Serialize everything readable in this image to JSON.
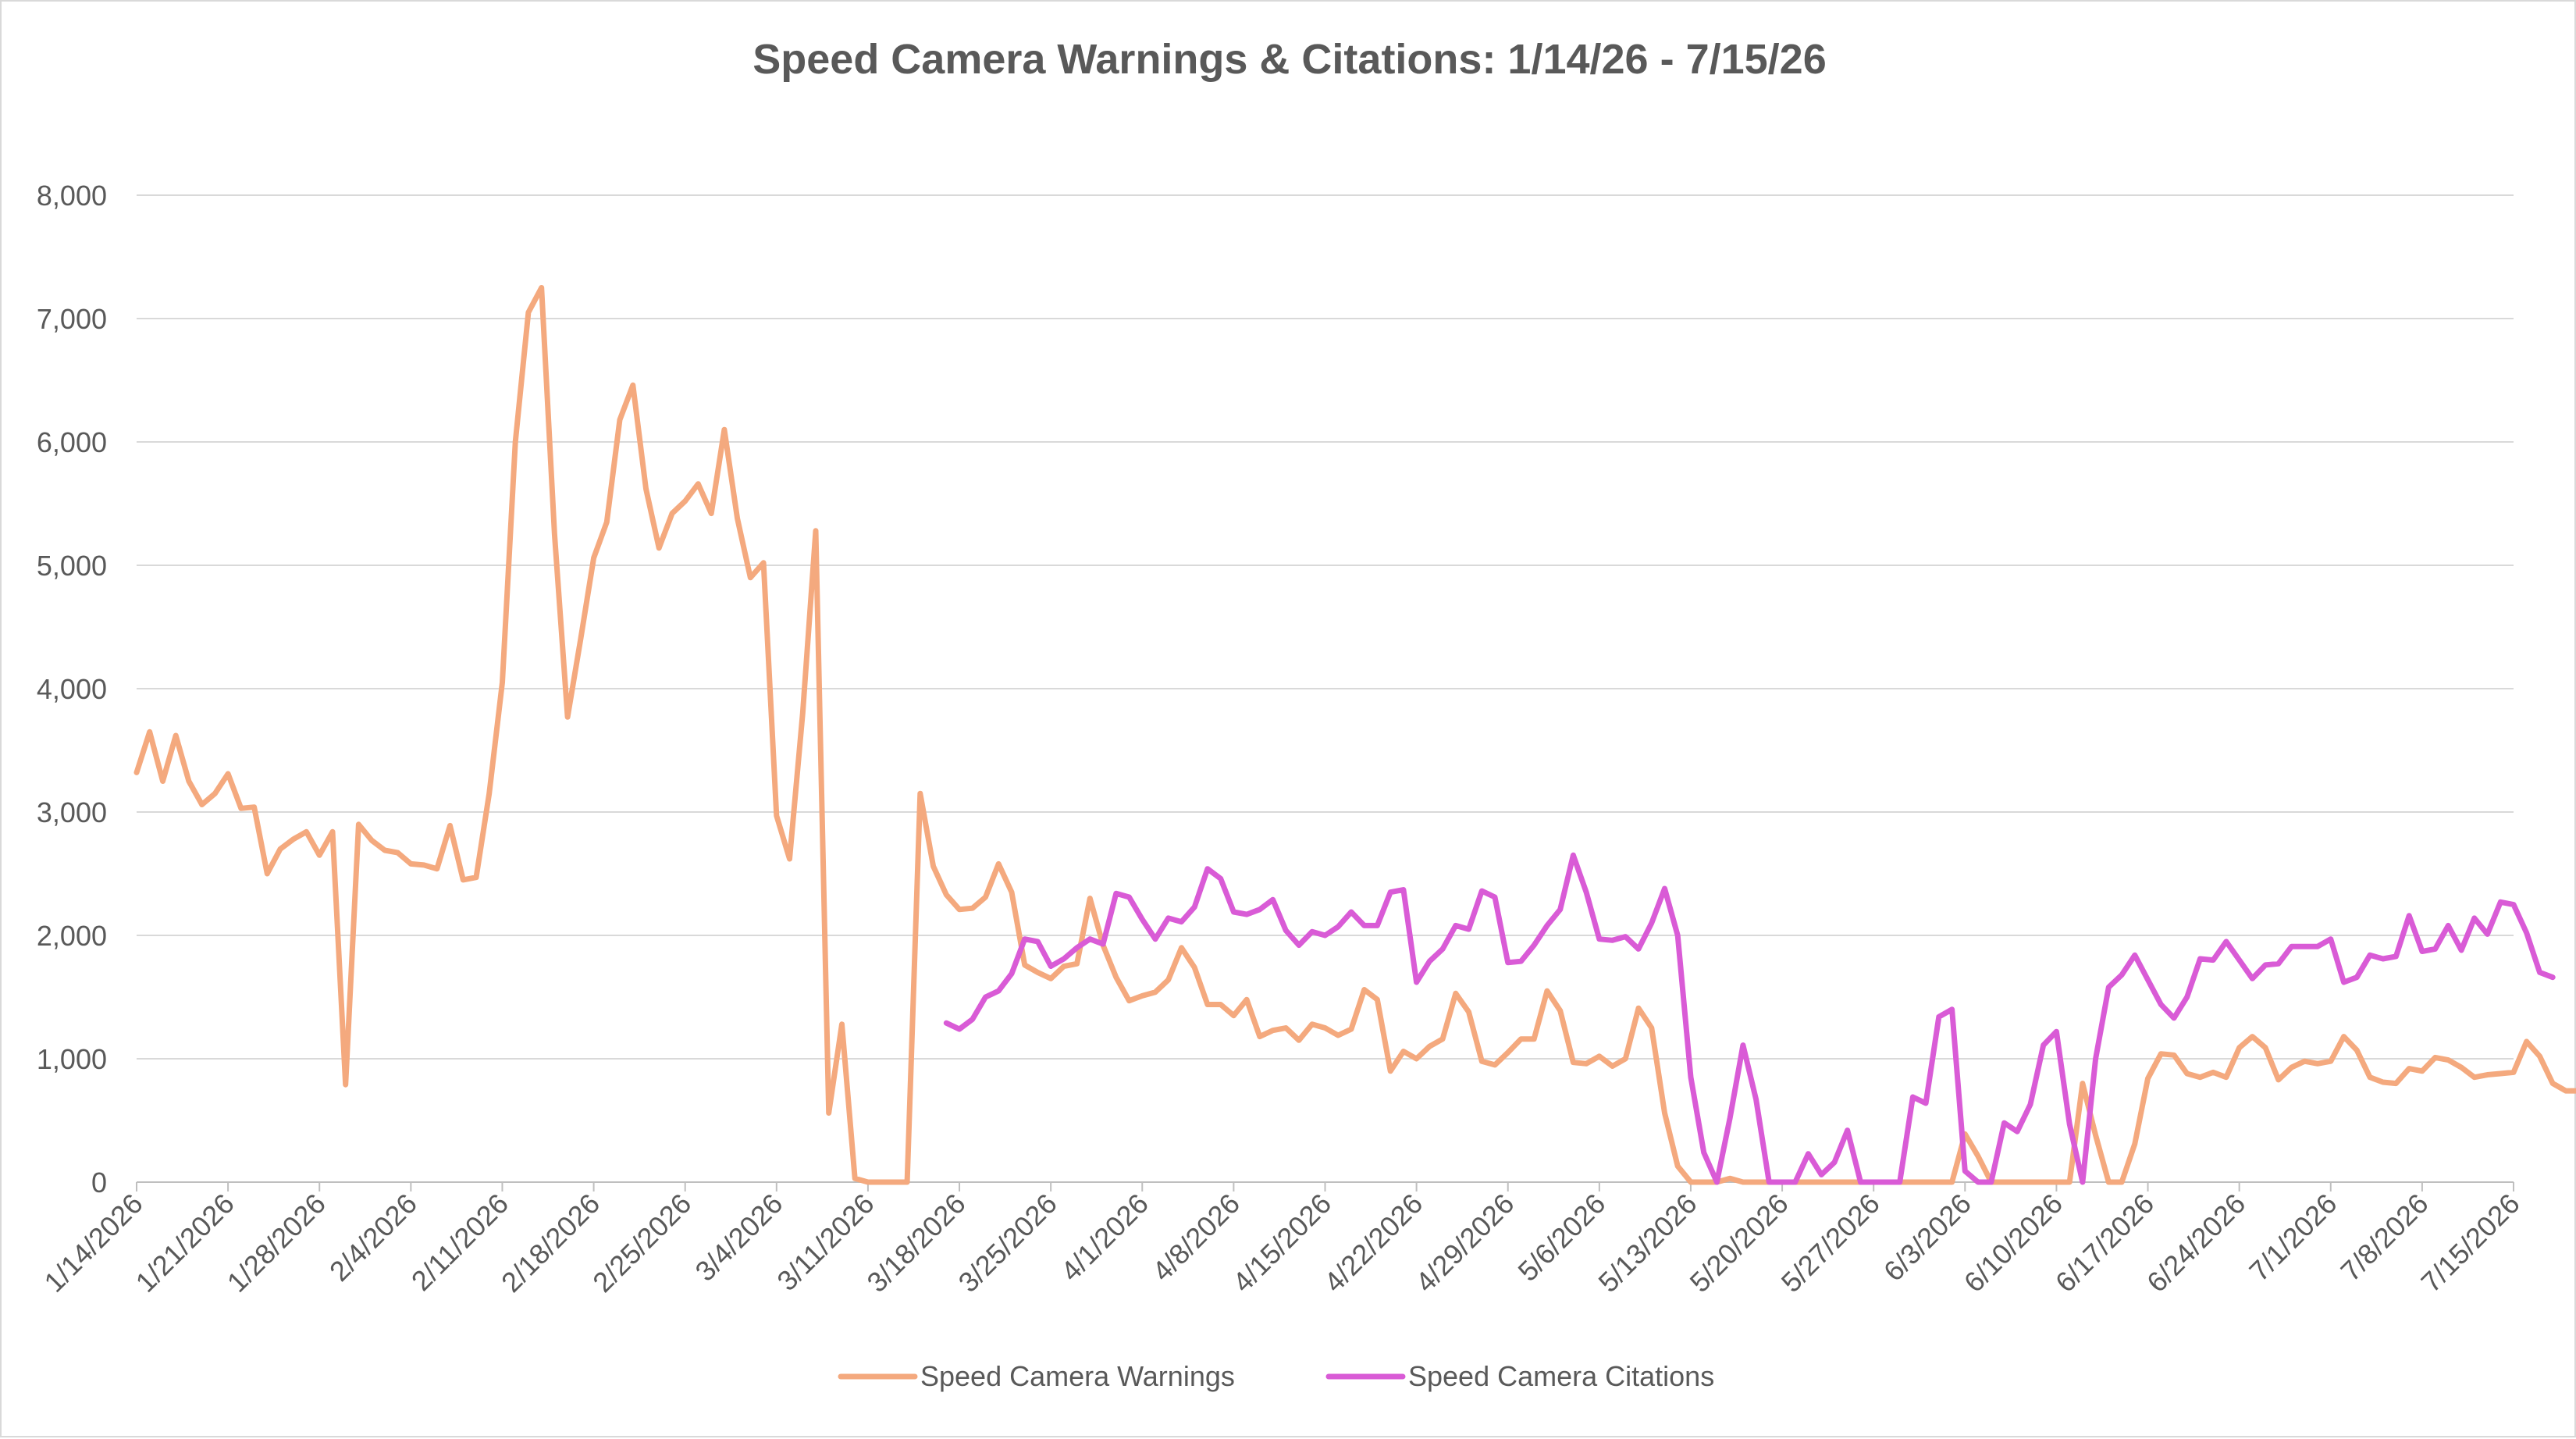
{
  "chart_data": {
    "type": "line",
    "title": "Speed Camera Warnings & Citations: 1/14/26 - 7/15/26",
    "xlabel": "",
    "ylabel": "",
    "ylim": [
      0,
      8000
    ],
    "yticks": [
      0,
      1000,
      2000,
      3000,
      4000,
      5000,
      6000,
      7000,
      8000
    ],
    "ytick_labels": [
      "0",
      "1,000",
      "2,000",
      "3,000",
      "4,000",
      "5,000",
      "6,000",
      "7,000",
      "8,000"
    ],
    "x_start": "1/14/2026",
    "x_end": "7/15/2026",
    "x_tick_labels": [
      "1/14/2026",
      "1/21/2026",
      "1/28/2026",
      "2/4/2026",
      "2/11/2026",
      "2/18/2026",
      "2/25/2026",
      "3/4/2026",
      "3/11/2026",
      "3/18/2026",
      "3/25/2026",
      "4/1/2026",
      "4/8/2026",
      "4/15/2026",
      "4/22/2026",
      "4/29/2026",
      "5/6/2026",
      "5/13/2026",
      "5/20/2026",
      "5/27/2026",
      "6/3/2026",
      "6/10/2026",
      "6/17/2026",
      "6/24/2026",
      "7/1/2026",
      "7/8/2026",
      "7/15/2026"
    ],
    "grid": true,
    "legend": "bottom",
    "colors": {
      "warnings": "#f4a97e",
      "citations": "#d95bd6",
      "grid": "#d9d9d9",
      "axis": "#bfbfbf",
      "text": "#595959"
    },
    "series": [
      {
        "name": "Speed Camera Warnings",
        "start": "1/14/2026",
        "values": [
          3320,
          3650,
          3250,
          3620,
          3250,
          3060,
          3150,
          3310,
          3030,
          3040,
          2500,
          2700,
          2780,
          2840,
          2650,
          2840,
          790,
          2900,
          2770,
          2690,
          2670,
          2580,
          2570,
          2540,
          2890,
          2450,
          2470,
          3150,
          4050,
          6000,
          7050,
          7250,
          5250,
          3770,
          4400,
          5060,
          5350,
          6180,
          6460,
          5620,
          5140,
          5420,
          5520,
          5660,
          5420,
          6100,
          5380,
          4900,
          5020,
          2970,
          2620,
          3800,
          5280,
          560,
          1280,
          30,
          0,
          0,
          0,
          0,
          3150,
          2560,
          2330,
          2210,
          2220,
          2310,
          2580,
          2350,
          1760,
          1700,
          1650,
          1750,
          1770,
          2300,
          1920,
          1660,
          1470,
          1510,
          1540,
          1640,
          1900,
          1740,
          1440,
          1440,
          1350,
          1480,
          1180,
          1230,
          1250,
          1150,
          1280,
          1250,
          1190,
          1240,
          1560,
          1480,
          900,
          1060,
          1000,
          1100,
          1160,
          1530,
          1380,
          980,
          950,
          1050,
          1160,
          1160,
          1550,
          1390,
          970,
          960,
          1020,
          940,
          1000,
          1410,
          1250,
          560,
          130,
          0,
          0,
          0,
          30,
          0,
          0,
          0,
          0,
          0,
          0,
          0,
          0,
          0,
          0,
          0,
          0,
          0,
          0,
          0,
          0,
          0,
          390,
          210,
          0,
          0,
          0,
          0,
          0,
          0,
          0,
          800,
          380,
          0,
          0,
          310,
          840,
          1040,
          1030,
          880,
          850,
          890,
          850,
          1090,
          1180,
          1090,
          830,
          930,
          980,
          960,
          980,
          1180,
          1070,
          850,
          810,
          800,
          920,
          900,
          1010,
          990,
          930,
          850,
          870,
          880,
          890,
          1140,
          1020,
          800,
          740,
          740
        ]
      },
      {
        "name": "Speed Camera Citations",
        "start": "3/17/2026",
        "values": [
          1290,
          1240,
          1320,
          1500,
          1550,
          1690,
          1970,
          1950,
          1750,
          1810,
          1900,
          1970,
          1930,
          2340,
          2310,
          2130,
          1970,
          2140,
          2110,
          2230,
          2540,
          2460,
          2190,
          2170,
          2210,
          2290,
          2040,
          1920,
          2030,
          2000,
          2070,
          2190,
          2080,
          2080,
          2350,
          2370,
          1620,
          1790,
          1890,
          2080,
          2050,
          2360,
          2310,
          1780,
          1790,
          1920,
          2080,
          2210,
          2650,
          2350,
          1970,
          1960,
          1990,
          1890,
          2100,
          2380,
          2000,
          850,
          240,
          0,
          520,
          1110,
          670,
          0,
          0,
          0,
          230,
          60,
          160,
          420,
          0,
          0,
          0,
          0,
          690,
          640,
          1340,
          1400,
          90,
          0,
          0,
          480,
          410,
          630,
          1110,
          1220,
          470,
          0,
          1000,
          1580,
          1680,
          1840,
          1640,
          1440,
          1330,
          1500,
          1810,
          1800,
          1950,
          1800,
          1650,
          1760,
          1770,
          1910,
          1910,
          1910,
          1970,
          1620,
          1660,
          1840,
          1810,
          1830,
          2160,
          1870,
          1890,
          2080,
          1880,
          2140,
          2010,
          2270,
          2250,
          2020,
          1700,
          1660
        ]
      }
    ]
  }
}
